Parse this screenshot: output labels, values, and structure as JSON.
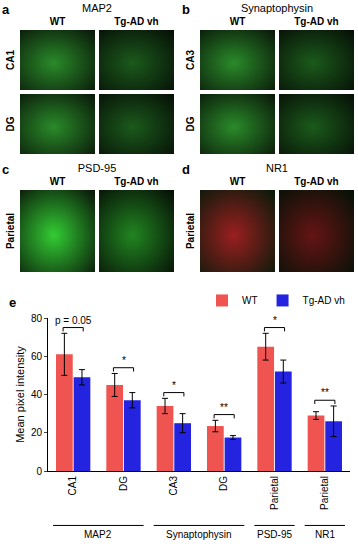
{
  "panels": [
    {
      "letter": "a",
      "title": "MAP2",
      "columns": [
        "WT",
        "Tg-AD vh"
      ],
      "rows": [
        "CA1",
        "DG"
      ],
      "color": "#2a8a2a"
    },
    {
      "letter": "b",
      "title": "Synaptophysin",
      "columns": [
        "WT",
        "Tg-AD vh"
      ],
      "rows": [
        "CA3",
        "DG"
      ],
      "color": "#2a8a2a"
    },
    {
      "letter": "c",
      "title": "PSD-95",
      "columns": [
        "WT",
        "Tg-AD vh"
      ],
      "rows": [
        "Parietal"
      ],
      "color": "#33cc33"
    },
    {
      "letter": "d",
      "title": "NR1",
      "columns": [
        "WT",
        "Tg-AD vh"
      ],
      "rows": [
        "Parietal"
      ],
      "color": "#9a1f1f"
    }
  ],
  "chart_data": {
    "type": "bar",
    "panel_label": "e",
    "y_label": "Mean pixel intensity",
    "categories": [
      "CA1",
      "DG",
      "CA3",
      "DG",
      "Parietal",
      "Parietal"
    ],
    "groups": [
      {
        "label": "MAP2",
        "span": [
          0,
          1
        ]
      },
      {
        "label": "Synaptophysin",
        "span": [
          2,
          3
        ]
      },
      {
        "label": "PSD-95",
        "span": [
          4,
          4
        ]
      },
      {
        "label": "NR1",
        "span": [
          5,
          5
        ]
      }
    ],
    "series": [
      {
        "name": "WT",
        "color": "#f05450",
        "values": [
          61,
          45,
          34,
          23.5,
          65,
          29
        ],
        "error": [
          11,
          6,
          4,
          3,
          7,
          2
        ]
      },
      {
        "name": "Tg-AD vh",
        "color": "#2424e0",
        "values": [
          49,
          37,
          25,
          17.5,
          52,
          26
        ],
        "error": [
          4,
          4,
          5,
          1,
          6,
          8
        ]
      }
    ],
    "significance": [
      "p = 0.05",
      "*",
      "*",
      "**",
      "*",
      "**"
    ],
    "ylim": [
      0,
      80
    ],
    "yticks": [
      0,
      20,
      40,
      60,
      80
    ],
    "legend": "top right",
    "grid": false
  }
}
